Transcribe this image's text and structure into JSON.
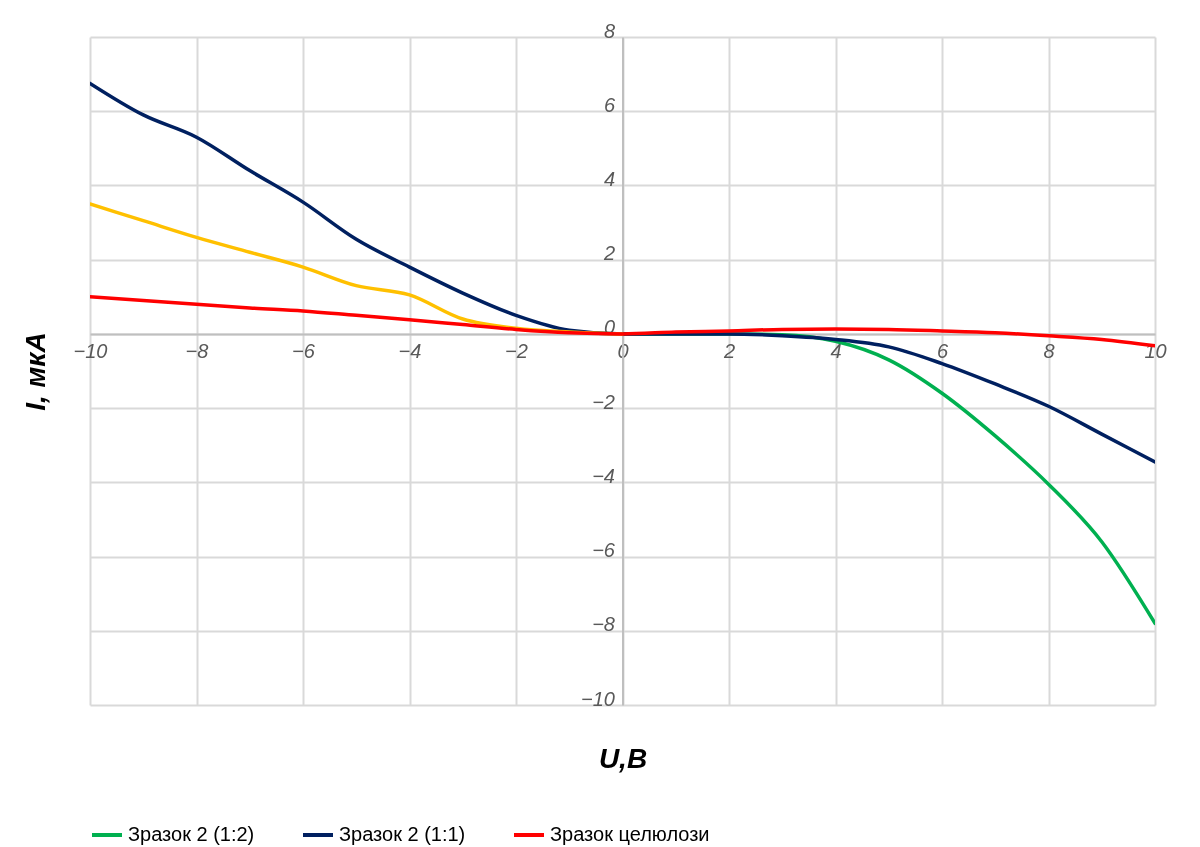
{
  "chart_data": {
    "type": "line",
    "xlabel": "U,B",
    "ylabel": "I, мкА",
    "xlim": [
      -10,
      10
    ],
    "ylim": [
      -10,
      8
    ],
    "xticks": [
      -10,
      -8,
      -6,
      -4,
      -2,
      0,
      2,
      4,
      6,
      8,
      10
    ],
    "yticks": [
      -10,
      -8,
      -6,
      -4,
      -2,
      0,
      2,
      4,
      6,
      8
    ],
    "grid": true,
    "legend": "bottom",
    "line_style": "solid",
    "series": [
      {
        "name": "Зразок 2 (1:2)",
        "color": "#00b050",
        "x": [
          0,
          1,
          2,
          3,
          4,
          5,
          6,
          7,
          8,
          9,
          10
        ],
        "values": [
          0,
          0,
          0,
          -0.02,
          -0.2,
          -0.7,
          -1.6,
          -2.75,
          -4.05,
          -5.6,
          -7.8
        ]
      },
      {
        "name": "Зразок 2 (1:1)",
        "color": "#002060",
        "x": [
          -10,
          -9,
          -8,
          -7,
          -6,
          -5,
          -4,
          -3,
          -2,
          -1,
          0,
          1,
          2,
          3,
          4,
          5,
          6,
          7,
          8,
          9,
          10
        ],
        "values": [
          6.75,
          5.9,
          5.3,
          4.4,
          3.55,
          2.55,
          1.8,
          1.1,
          0.5,
          0.1,
          0,
          0,
          0,
          -0.05,
          -0.15,
          -0.35,
          -0.8,
          -1.35,
          -1.95,
          -2.7,
          -3.45
        ]
      },
      {
        "color": "#ffc000",
        "x": [
          -10,
          -9,
          -8,
          -7,
          -6,
          -5,
          -4,
          -3,
          -2,
          -1,
          0
        ],
        "values": [
          3.5,
          3.05,
          2.6,
          2.2,
          1.8,
          1.3,
          1.05,
          0.4,
          0.15,
          0.05,
          0
        ]
      },
      {
        "name": "Зразок целюлози",
        "color": "#ff0000",
        "x": [
          -10,
          -9,
          -8,
          -7,
          -6,
          -5,
          -4,
          -3,
          -2,
          -1,
          0,
          1,
          2,
          3,
          4,
          5,
          6,
          7,
          8,
          9,
          10
        ],
        "values": [
          1.0,
          0.9,
          0.8,
          0.7,
          0.62,
          0.5,
          0.38,
          0.25,
          0.12,
          0.03,
          0,
          0.05,
          0.08,
          0.12,
          0.13,
          0.12,
          0.08,
          0.03,
          -0.05,
          -0.15,
          -0.32
        ]
      }
    ]
  }
}
